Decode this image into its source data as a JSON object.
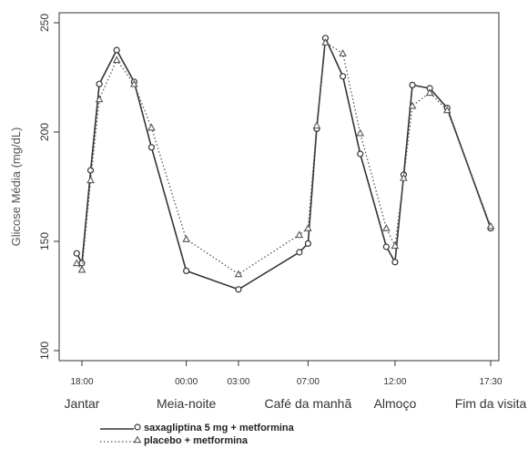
{
  "chart_data": {
    "type": "line",
    "ylabel": "Glicose Média (mg/dL)",
    "ylim": [
      100,
      250
    ],
    "yticks": [
      100,
      150,
      200,
      250
    ],
    "xlim": [
      0,
      24
    ],
    "time_ticks": [
      {
        "x": 1,
        "label": "18:00"
      },
      {
        "x": 7,
        "label": "00:00"
      },
      {
        "x": 10,
        "label": "03:00"
      },
      {
        "x": 14,
        "label": "07:00"
      },
      {
        "x": 19,
        "label": "12:00"
      },
      {
        "x": 24.5,
        "label": "17:30"
      }
    ],
    "event_labels": [
      {
        "x": 1,
        "label": "Jantar"
      },
      {
        "x": 7,
        "label": "Meia-noite"
      },
      {
        "x": 14,
        "label": "Café da manhã"
      },
      {
        "x": 19,
        "label": "Almoço"
      },
      {
        "x": 24.5,
        "label": "Fim da visita"
      }
    ],
    "series": [
      {
        "name": "saxagliptina 5 mg + metformina",
        "marker": "circle",
        "line": "solid",
        "color": "#333333",
        "points": [
          {
            "x": 0.7,
            "y": 144.5
          },
          {
            "x": 1.0,
            "y": 140
          },
          {
            "x": 1.5,
            "y": 182.5
          },
          {
            "x": 2.0,
            "y": 222
          },
          {
            "x": 3.0,
            "y": 237.5
          },
          {
            "x": 4.0,
            "y": 223
          },
          {
            "x": 5.0,
            "y": 193
          },
          {
            "x": 7.0,
            "y": 136.5
          },
          {
            "x": 10.0,
            "y": 128
          },
          {
            "x": 13.5,
            "y": 145
          },
          {
            "x": 14.0,
            "y": 149
          },
          {
            "x": 14.5,
            "y": 201.5
          },
          {
            "x": 15.0,
            "y": 243
          },
          {
            "x": 16.0,
            "y": 225.5
          },
          {
            "x": 17.0,
            "y": 190
          },
          {
            "x": 18.5,
            "y": 147.5
          },
          {
            "x": 19.0,
            "y": 140.5
          },
          {
            "x": 19.5,
            "y": 180.5
          },
          {
            "x": 20.0,
            "y": 221.5
          },
          {
            "x": 21.0,
            "y": 220
          },
          {
            "x": 22.0,
            "y": 211
          },
          {
            "x": 24.5,
            "y": 156
          }
        ]
      },
      {
        "name": "placebo + metformina",
        "marker": "triangle",
        "line": "dotted",
        "color": "#555555",
        "points": [
          {
            "x": 0.7,
            "y": 140
          },
          {
            "x": 1.0,
            "y": 137
          },
          {
            "x": 1.5,
            "y": 178
          },
          {
            "x": 2.0,
            "y": 215
          },
          {
            "x": 3.0,
            "y": 233
          },
          {
            "x": 4.0,
            "y": 222
          },
          {
            "x": 5.0,
            "y": 202
          },
          {
            "x": 7.0,
            "y": 151
          },
          {
            "x": 10.0,
            "y": 135
          },
          {
            "x": 13.5,
            "y": 153
          },
          {
            "x": 14.0,
            "y": 156
          },
          {
            "x": 14.5,
            "y": 203
          },
          {
            "x": 15.0,
            "y": 241
          },
          {
            "x": 16.0,
            "y": 236
          },
          {
            "x": 17.0,
            "y": 199.5
          },
          {
            "x": 18.5,
            "y": 156
          },
          {
            "x": 19.0,
            "y": 148
          },
          {
            "x": 19.5,
            "y": 179
          },
          {
            "x": 20.0,
            "y": 212
          },
          {
            "x": 21.0,
            "y": 218
          },
          {
            "x": 22.0,
            "y": 210
          },
          {
            "x": 24.5,
            "y": 157
          }
        ]
      }
    ],
    "legend_position": "bottom-left",
    "grid": false
  }
}
